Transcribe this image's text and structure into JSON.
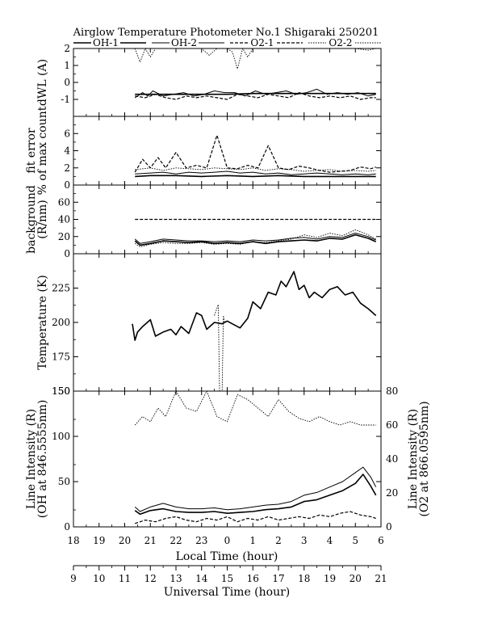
{
  "chart_data": {
    "type": "line",
    "title": "Airglow Temperature Photometer No.1  Shigaraki  250201",
    "legend": {
      "placement": "top",
      "entries": [
        "OH-1",
        "OH-2",
        "O2-1",
        "O2-2"
      ]
    },
    "x_axis": {
      "label": "Local Time (hour)",
      "tick_labels": [
        "18",
        "19",
        "20",
        "21",
        "22",
        "23",
        "0",
        "1",
        "2",
        "3",
        "4",
        "5",
        "6"
      ],
      "range": [
        18,
        30
      ]
    },
    "x2_axis": {
      "label": "Universal Time (hour)",
      "tick_labels": [
        "9",
        "10",
        "11",
        "12",
        "13",
        "14",
        "15",
        "16",
        "17",
        "18",
        "19",
        "20",
        "21"
      ],
      "range": [
        9,
        21
      ]
    },
    "panels": [
      {
        "ylabel": "dWL (A)",
        "ylim": [
          -2,
          2
        ],
        "yticks": [
          "-1",
          "0",
          "1",
          "2"
        ],
        "series": [
          {
            "name": "OH-1",
            "style": "solid",
            "x": [
              20.4,
              21,
              22,
              23,
              24,
              25,
              26,
              27,
              28,
              29,
              29.8
            ],
            "y": [
              -0.7,
              -0.7,
              -0.7,
              -0.7,
              -0.7,
              -0.65,
              -0.65,
              -0.65,
              -0.65,
              -0.65,
              -0.65
            ]
          },
          {
            "name": "OH-2",
            "style": "solid-thin",
            "x": [
              20.4,
              20.7,
              20.9,
              21.1,
              21.5,
              21.9,
              22.3,
              22.7,
              23.1,
              23.5,
              23.9,
              24.3,
              24.7,
              25.1,
              25.5,
              25.9,
              26.3,
              26.7,
              27.1,
              27.5,
              27.9,
              28.3,
              28.7,
              29.1,
              29.5,
              29.8
            ],
            "y": [
              -0.9,
              -0.6,
              -0.8,
              -0.5,
              -0.8,
              -0.7,
              -0.6,
              -0.8,
              -0.7,
              -0.5,
              -0.6,
              -0.6,
              -0.8,
              -0.5,
              -0.7,
              -0.6,
              -0.5,
              -0.7,
              -0.6,
              -0.4,
              -0.7,
              -0.6,
              -0.7,
              -0.6,
              -0.8,
              -0.7
            ]
          },
          {
            "name": "O2-1",
            "style": "dashed",
            "x": [
              20.4,
              20.8,
              21.2,
              21.6,
              22,
              22.4,
              22.8,
              23.2,
              23.6,
              24,
              24.4,
              24.8,
              25.2,
              25.6,
              26,
              26.4,
              26.8,
              27.2,
              27.6,
              28,
              28.4,
              28.8,
              29.2,
              29.6,
              29.8
            ],
            "y": [
              -0.8,
              -0.9,
              -0.7,
              -0.9,
              -1.0,
              -0.8,
              -0.9,
              -0.8,
              -0.9,
              -1.0,
              -0.7,
              -0.8,
              -0.9,
              -0.7,
              -0.8,
              -0.9,
              -0.6,
              -0.8,
              -0.9,
              -0.8,
              -0.9,
              -0.8,
              -1.0,
              -0.9,
              -0.9
            ]
          },
          {
            "name": "O2-2",
            "style": "dotted",
            "x": [
              20.4,
              20.6,
              20.8,
              21.0,
              21.2,
              21.5,
              22,
              22.5,
              23,
              23.3,
              23.6,
              24,
              24.2,
              24.4,
              24.6,
              24.8,
              25,
              25.5,
              26,
              26.5,
              27,
              27.5,
              28,
              28.5,
              29,
              29.5,
              29.8
            ],
            "y": [
              2,
              1.2,
              2,
              1.5,
              2,
              2,
              2,
              2,
              2,
              1.6,
              2,
              2,
              1.8,
              0.8,
              2,
              1.5,
              2,
              2,
              2,
              2,
              2,
              2,
              2,
              2,
              2,
              1.9,
              2
            ]
          }
        ]
      },
      {
        "ylabel": "fit error % of max count",
        "ylim": [
          0,
          8
        ],
        "yticks": [
          "0",
          "2",
          "4",
          "6"
        ],
        "series": [
          {
            "name": "OH-1",
            "style": "solid",
            "x": [
              20.4,
              21,
              22,
              23,
              24,
              25,
              26,
              27,
              28,
              29,
              29.8
            ],
            "y": [
              1.0,
              1.1,
              1.1,
              1.0,
              1.1,
              1.0,
              1.1,
              1.0,
              1.0,
              1.0,
              1.0
            ]
          },
          {
            "name": "OH-2",
            "style": "solid-thin",
            "x": [
              20.4,
              21,
              21.5,
              22,
              22.5,
              23,
              23.5,
              24,
              24.5,
              25,
              25.5,
              26,
              26.5,
              27,
              27.5,
              28,
              28.5,
              29,
              29.5,
              29.8
            ],
            "y": [
              1.3,
              1.4,
              1.5,
              1.3,
              1.5,
              1.4,
              1.5,
              1.6,
              1.4,
              1.5,
              1.3,
              1.4,
              1.2,
              1.3,
              1.4,
              1.3,
              1.2,
              1.3,
              1.2,
              1.3
            ]
          },
          {
            "name": "O2-1",
            "style": "dashed",
            "x": [
              20.4,
              20.7,
              21,
              21.3,
              21.6,
              22,
              22.4,
              22.8,
              23.2,
              23.6,
              24,
              24.4,
              24.8,
              25.2,
              25.6,
              26,
              26.4,
              26.8,
              27.2,
              27.6,
              28,
              28.4,
              28.8,
              29.2,
              29.6,
              29.8
            ],
            "y": [
              1.5,
              3.0,
              2.0,
              3.2,
              2.0,
              3.8,
              2.0,
              2.3,
              2.0,
              5.8,
              2.0,
              1.9,
              2.3,
              2.0,
              4.6,
              2.0,
              1.8,
              2.2,
              2.0,
              1.7,
              1.5,
              1.6,
              1.7,
              2.1,
              1.9,
              2.1
            ]
          },
          {
            "name": "O2-2",
            "style": "dotted",
            "x": [
              20.4,
              21,
              21.5,
              22,
              22.5,
              23,
              23.5,
              24,
              24.5,
              25,
              25.5,
              26,
              26.5,
              27,
              27.5,
              28,
              28.5,
              29,
              29.5,
              29.8
            ],
            "y": [
              1.8,
              2.0,
              1.7,
              2.0,
              1.9,
              1.8,
              2.0,
              1.9,
              1.8,
              2.0,
              1.7,
              1.9,
              1.8,
              1.6,
              1.7,
              1.8,
              1.6,
              1.7,
              1.6,
              1.7
            ]
          }
        ]
      },
      {
        "ylabel": "background (R/nm)",
        "ylim": [
          0,
          80
        ],
        "yticks": [
          "0",
          "20",
          "40",
          "60"
        ],
        "series": [
          {
            "name": "OH-1",
            "style": "solid",
            "x": [
              20.4,
              20.6,
              21,
              21.5,
              22,
              22.5,
              23,
              23.5,
              24,
              24.5,
              25,
              25.5,
              26,
              26.5,
              27,
              27.5,
              28,
              28.5,
              29,
              29.5,
              29.8
            ],
            "y": [
              15,
              10,
              12,
              15,
              14,
              13,
              14,
              12,
              13,
              12,
              14,
              12,
              14,
              15,
              16,
              15,
              18,
              17,
              22,
              18,
              14
            ]
          },
          {
            "name": "OH-2",
            "style": "solid-thin",
            "x": [
              20.4,
              20.6,
              21,
              21.5,
              22,
              22.5,
              23,
              23.5,
              24,
              24.5,
              25,
              25.5,
              26,
              26.5,
              27,
              27.5,
              28,
              28.5,
              29,
              29.5,
              29.8
            ],
            "y": [
              17,
              12,
              14,
              17,
              16,
              15,
              15,
              14,
              15,
              14,
              16,
              15,
              16,
              18,
              19,
              17,
              20,
              19,
              24,
              20,
              16
            ]
          },
          {
            "name": "O2-1",
            "style": "dashed",
            "x": [
              20.4,
              29.8
            ],
            "y": [
              40,
              40
            ]
          },
          {
            "name": "O2-2",
            "style": "dotted",
            "x": [
              20.4,
              20.6,
              21,
              21.5,
              22,
              22.5,
              23,
              23.5,
              24,
              24.5,
              25,
              25.5,
              26,
              26.5,
              27,
              27.5,
              28,
              28.5,
              29,
              29.5,
              29.8
            ],
            "y": [
              12,
              8,
              11,
              13,
              12,
              12,
              13,
              11,
              12,
              11,
              14,
              13,
              15,
              17,
              22,
              19,
              24,
              21,
              28,
              22,
              17
            ]
          }
        ]
      },
      {
        "ylabel": "Temperature (K)",
        "ylim": [
          150,
          250
        ],
        "yticks": [
          "150",
          "175",
          "200",
          "225"
        ],
        "series": [
          {
            "name": "OH",
            "style": "solid",
            "x": [
              20.3,
              20.4,
              20.5,
              20.7,
              21.0,
              21.2,
              21.5,
              21.8,
              22.0,
              22.2,
              22.5,
              22.8,
              23.0,
              23.2,
              23.5,
              23.8,
              24.0,
              24.3,
              24.5,
              24.8,
              25.0,
              25.3,
              25.6,
              25.9,
              26.1,
              26.3,
              26.6,
              26.8,
              27.0,
              27.2,
              27.4,
              27.7,
              28.0,
              28.3,
              28.6,
              28.9,
              29.2,
              29.5,
              29.8
            ],
            "y": [
              199,
              187,
              193,
              197,
              202,
              190,
              193,
              195,
              191,
              197,
              192,
              207,
              205,
              195,
              200,
              199,
              201,
              198,
              196,
              203,
              215,
              210,
              222,
              220,
              230,
              226,
              237,
              224,
              227,
              218,
              222,
              218,
              224,
              226,
              220,
              222,
              214,
              210,
              205
            ]
          },
          {
            "name": "O2",
            "style": "dotted",
            "x": [
              23.5,
              23.65,
              23.7,
              23.75,
              23.8,
              23.85,
              23.9
            ],
            "y": [
              205,
              213,
              150,
              150,
              150,
              205,
              200
            ]
          }
        ]
      },
      {
        "ylabel": "Line Intensity (R) (OH at 846.5555nm)",
        "ylim": [
          0,
          150
        ],
        "yticks": [
          "0",
          "50",
          "100",
          "150"
        ],
        "y2label": "Line Intensity (R) (O2 at 866.0595nm)",
        "y2lim": [
          0,
          80
        ],
        "y2ticks": [
          "0",
          "20",
          "40",
          "60",
          "80"
        ],
        "series": [
          {
            "name": "OH-1",
            "style": "solid",
            "x": [
              20.4,
              20.6,
              21,
              21.5,
              22,
              22.5,
              23,
              23.5,
              24,
              24.5,
              25,
              25.5,
              26,
              26.5,
              27,
              27.5,
              28,
              28.5,
              29,
              29.3,
              29.6,
              29.8
            ],
            "y": [
              18,
              14,
              18,
              20,
              17,
              16,
              16,
              17,
              15,
              16,
              17,
              19,
              20,
              22,
              28,
              30,
              35,
              40,
              48,
              58,
              45,
              35
            ]
          },
          {
            "name": "OH-2",
            "style": "solid-thin",
            "x": [
              20.4,
              20.6,
              21,
              21.5,
              22,
              22.5,
              23,
              23.5,
              24,
              24.5,
              25,
              25.5,
              26,
              26.5,
              27,
              27.5,
              28,
              28.5,
              29,
              29.3,
              29.6,
              29.8
            ],
            "y": [
              22,
              17,
              22,
              26,
              22,
              20,
              20,
              21,
              19,
              20,
              22,
              24,
              25,
              28,
              35,
              38,
              44,
              50,
              60,
              66,
              55,
              44
            ]
          },
          {
            "name": "O2-1",
            "style": "dashed",
            "x": [
              20.4,
              20.8,
              21.2,
              21.6,
              22,
              22.4,
              22.8,
              23.2,
              23.6,
              24,
              24.4,
              24.8,
              25.2,
              25.6,
              26,
              26.4,
              26.8,
              27.2,
              27.6,
              28,
              28.4,
              28.8,
              29.2,
              29.6,
              29.8
            ],
            "y": [
              2,
              4,
              3,
              5,
              6,
              4,
              3,
              5,
              4,
              6,
              3,
              5,
              4,
              6,
              4,
              5,
              6,
              5,
              7,
              6,
              8,
              9,
              7,
              6,
              5
            ],
            "axis": "right"
          },
          {
            "name": "O2-2",
            "style": "dotted",
            "x": [
              20.4,
              20.7,
              21,
              21.3,
              21.6,
              22,
              22.4,
              22.8,
              23.2,
              23.6,
              24,
              24.4,
              24.8,
              25.2,
              25.6,
              26,
              26.4,
              26.8,
              27.2,
              27.6,
              28,
              28.4,
              28.8,
              29.2,
              29.6,
              29.8
            ],
            "y": [
              60,
              65,
              62,
              70,
              65,
              80,
              70,
              68,
              80,
              65,
              62,
              78,
              75,
              70,
              65,
              75,
              68,
              64,
              62,
              65,
              62,
              60,
              62,
              60,
              60,
              60
            ],
            "axis": "right"
          }
        ]
      }
    ]
  }
}
